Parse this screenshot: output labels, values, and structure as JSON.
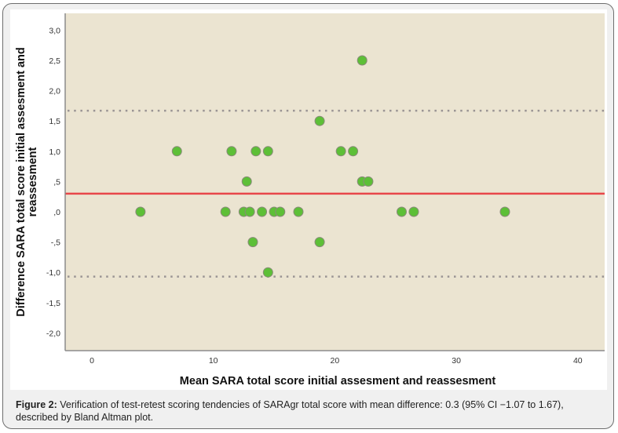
{
  "chart_data": {
    "type": "scatter",
    "subtype": "bland-altman",
    "title": "",
    "xlabel": "Mean SARA total score initial assesment and reassesment",
    "ylabel_line1": "Difference SARA total score initial assesment and",
    "ylabel_line2": "reassesment",
    "xlim": [
      -2.2,
      42.2
    ],
    "ylim": [
      -2.3,
      3.3
    ],
    "x_ticks": [
      0,
      10,
      20,
      30,
      40
    ],
    "x_tick_labels": [
      "0",
      "10",
      "20",
      "30",
      "40"
    ],
    "y_ticks": [
      3.0,
      2.5,
      2.0,
      1.5,
      1.0,
      0.5,
      0.0,
      -0.5,
      -1.0,
      -1.5,
      -2.0
    ],
    "y_tick_labels": [
      "3,0",
      "2,5",
      "2,0",
      "1,5",
      "1,0",
      ",5",
      ",0",
      "-,5",
      "-1,0",
      "-1,5",
      "-2,0"
    ],
    "grid": false,
    "mean_difference": 0.3,
    "upper_loa": 1.67,
    "lower_loa": -1.07,
    "points": [
      {
        "x": 4.0,
        "y": 0.0
      },
      {
        "x": 7.0,
        "y": 1.0
      },
      {
        "x": 11.0,
        "y": 0.0
      },
      {
        "x": 11.5,
        "y": 1.0
      },
      {
        "x": 12.5,
        "y": 0.0
      },
      {
        "x": 12.75,
        "y": 0.5
      },
      {
        "x": 13.0,
        "y": 0.0
      },
      {
        "x": 13.25,
        "y": -0.5
      },
      {
        "x": 13.5,
        "y": 1.0
      },
      {
        "x": 14.0,
        "y": 0.0
      },
      {
        "x": 14.5,
        "y": 1.0
      },
      {
        "x": 14.5,
        "y": -1.0
      },
      {
        "x": 15.0,
        "y": 0.0
      },
      {
        "x": 15.5,
        "y": 0.0
      },
      {
        "x": 17.0,
        "y": 0.0
      },
      {
        "x": 18.75,
        "y": 1.5
      },
      {
        "x": 18.75,
        "y": -0.5
      },
      {
        "x": 20.5,
        "y": 1.0
      },
      {
        "x": 21.5,
        "y": 1.0
      },
      {
        "x": 22.25,
        "y": 2.5
      },
      {
        "x": 22.25,
        "y": 0.5
      },
      {
        "x": 22.75,
        "y": 0.5
      },
      {
        "x": 25.5,
        "y": 0.0
      },
      {
        "x": 26.5,
        "y": 0.0
      },
      {
        "x": 34.0,
        "y": 0.0
      }
    ],
    "colors": {
      "plot_background": "#ebe4d1",
      "point_fill": "#5dbf37",
      "point_stroke": "#8a8a7a",
      "mean_line": "#e8474a",
      "loa_line": "#9a9494"
    }
  },
  "caption": {
    "label": "Figure 2:",
    "text": " Verification of test-retest scoring tendencies of SARAgr total score with mean difference: 0.3 (95% CI −1.07 to 1.67), described by Bland Altman plot."
  }
}
